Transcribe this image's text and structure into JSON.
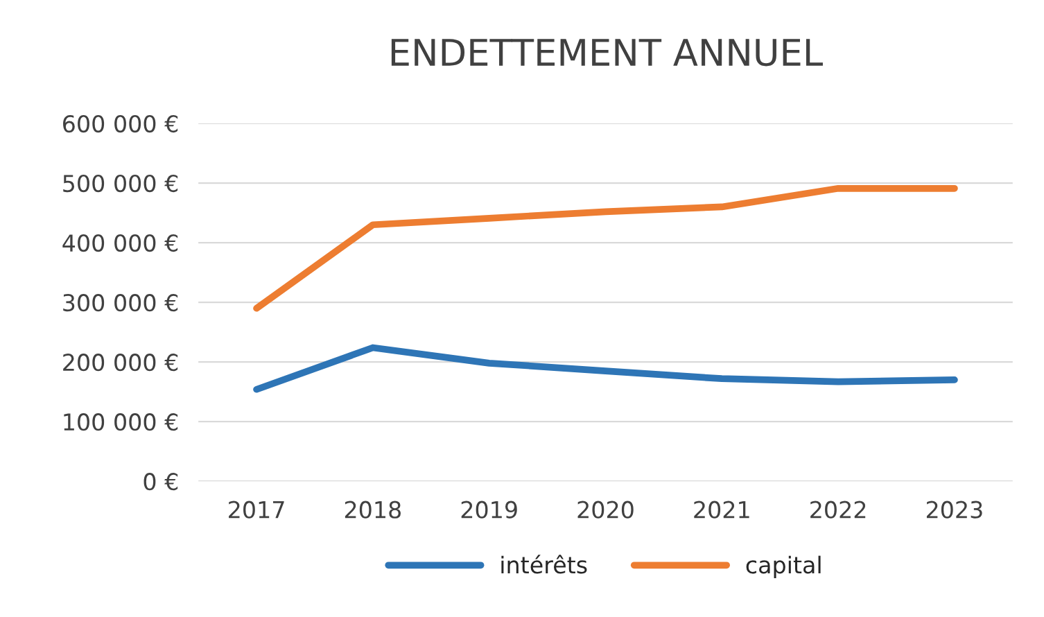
{
  "chart_data": {
    "type": "line",
    "title": "ENDETTEMENT ANNUEL",
    "categories": [
      "2017",
      "2018",
      "2019",
      "2020",
      "2021",
      "2022",
      "2023"
    ],
    "series": [
      {
        "name": "intérêts",
        "color": "#2e75b6",
        "values": [
          154000,
          224000,
          198000,
          185000,
          172000,
          167000,
          170000
        ]
      },
      {
        "name": "capital",
        "color": "#ed7d31",
        "values": [
          290000,
          430000,
          441000,
          452000,
          460000,
          491000,
          491000
        ]
      }
    ],
    "ylim": [
      0,
      600000
    ],
    "yticks": [
      {
        "value": 0,
        "label": "0 €"
      },
      {
        "value": 100000,
        "label": "100 000 €"
      },
      {
        "value": 200000,
        "label": "200 000 €"
      },
      {
        "value": 300000,
        "label": "300 000 €"
      },
      {
        "value": 400000,
        "label": "400 000 €"
      },
      {
        "value": 500000,
        "label": "500 000 €"
      },
      {
        "value": 600000,
        "label": "600 000 €"
      }
    ],
    "grid": "y",
    "legend": "bottom",
    "marker": "none",
    "line_style": "solid"
  }
}
